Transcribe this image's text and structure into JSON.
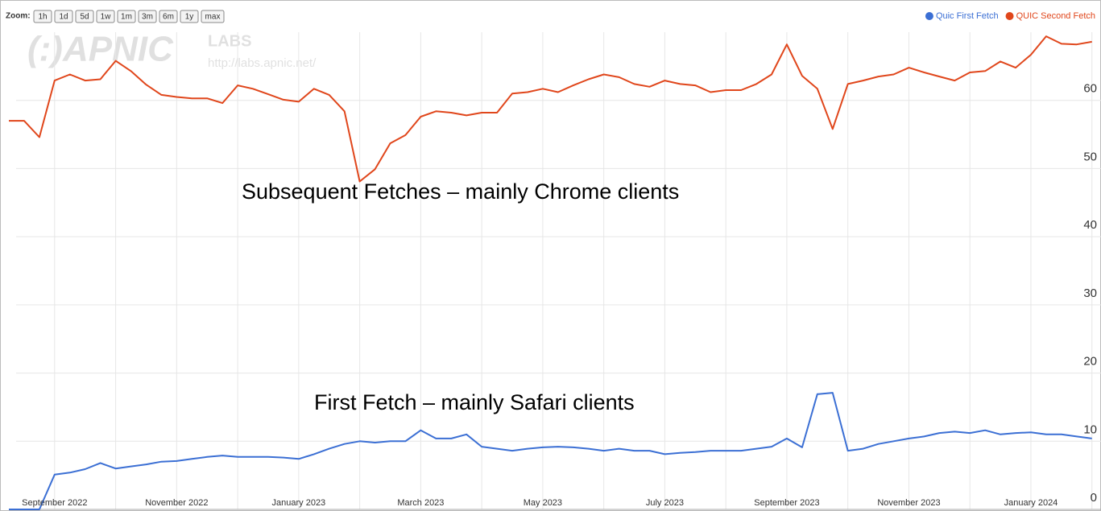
{
  "watermark": {
    "logo": "(:)APNIC",
    "labs": "LABS",
    "url": "http://labs.apnic.net/"
  },
  "toolbar": {
    "zoom_label": "Zoom:",
    "buttons": [
      "1h",
      "1d",
      "5d",
      "1w",
      "1m",
      "3m",
      "6m",
      "1y",
      "max"
    ]
  },
  "chart_data": {
    "type": "line",
    "annotations": [
      "Subsequent Fetches – mainly Chrome clients",
      "First Fetch – mainly Safari clients"
    ],
    "categories": [
      null,
      null,
      null,
      "September 2022",
      null,
      null,
      null,
      null,
      null,
      null,
      null,
      "November 2022",
      null,
      null,
      null,
      null,
      null,
      null,
      null,
      "January 2023",
      null,
      null,
      null,
      null,
      null,
      null,
      null,
      "March 2023",
      null,
      null,
      null,
      null,
      null,
      null,
      null,
      "May 2023",
      null,
      null,
      null,
      null,
      null,
      null,
      null,
      "July 2023",
      null,
      null,
      null,
      null,
      null,
      null,
      null,
      "September 2023",
      null,
      null,
      null,
      null,
      null,
      null,
      null,
      "November 2023",
      null,
      null,
      null,
      null,
      null,
      null,
      null,
      "January 2024",
      null,
      null,
      null,
      null
    ],
    "series": [
      {
        "name": "Quic First Fetch",
        "color": "#3b6fd4",
        "values": [
          0,
          0,
          0,
          5.1,
          5.4,
          5.9,
          6.8,
          6.0,
          6.3,
          6.6,
          7.0,
          7.1,
          7.4,
          7.7,
          7.9,
          7.7,
          7.7,
          7.7,
          7.6,
          7.4,
          8.1,
          8.9,
          9.6,
          10.0,
          9.8,
          10.0,
          10.0,
          11.6,
          10.4,
          10.4,
          11.0,
          9.2,
          8.9,
          8.6,
          8.9,
          9.1,
          9.2,
          9.1,
          8.9,
          8.6,
          8.9,
          8.6,
          8.6,
          8.1,
          8.3,
          8.4,
          8.6,
          8.6,
          8.6,
          8.9,
          9.2,
          10.4,
          9.1,
          16.9,
          17.1,
          8.6,
          8.9,
          9.6,
          10.0,
          10.4,
          10.7,
          11.2,
          11.4,
          11.2,
          11.6,
          11.0,
          11.2,
          11.3,
          11.0,
          11.0,
          10.7,
          10.4
        ]
      },
      {
        "name": "QUIC Second Fetch",
        "color": "#e0461b",
        "values": [
          57.0,
          57.0,
          54.6,
          62.9,
          63.8,
          62.9,
          63.1,
          65.8,
          64.3,
          62.3,
          60.8,
          60.5,
          60.3,
          60.3,
          59.6,
          62.2,
          61.7,
          60.9,
          60.1,
          59.8,
          61.7,
          60.8,
          58.4,
          48.1,
          49.9,
          53.7,
          54.9,
          57.6,
          58.4,
          58.2,
          57.8,
          58.2,
          58.2,
          61.0,
          61.2,
          61.7,
          61.2,
          62.2,
          63.1,
          63.8,
          63.4,
          62.4,
          62.0,
          62.9,
          62.4,
          62.2,
          61.2,
          61.5,
          61.5,
          62.4,
          63.8,
          68.2,
          63.6,
          61.7,
          55.8,
          62.4,
          62.9,
          63.5,
          63.8,
          64.8,
          64.1,
          63.5,
          62.9,
          64.1,
          64.3,
          65.7,
          64.8,
          66.7,
          69.4,
          68.3,
          68.2,
          68.6
        ]
      }
    ],
    "ylim": [
      0,
      70
    ],
    "yticks": [
      0,
      10,
      20,
      30,
      40,
      50,
      60
    ],
    "grid": true,
    "legend": "top-right"
  }
}
